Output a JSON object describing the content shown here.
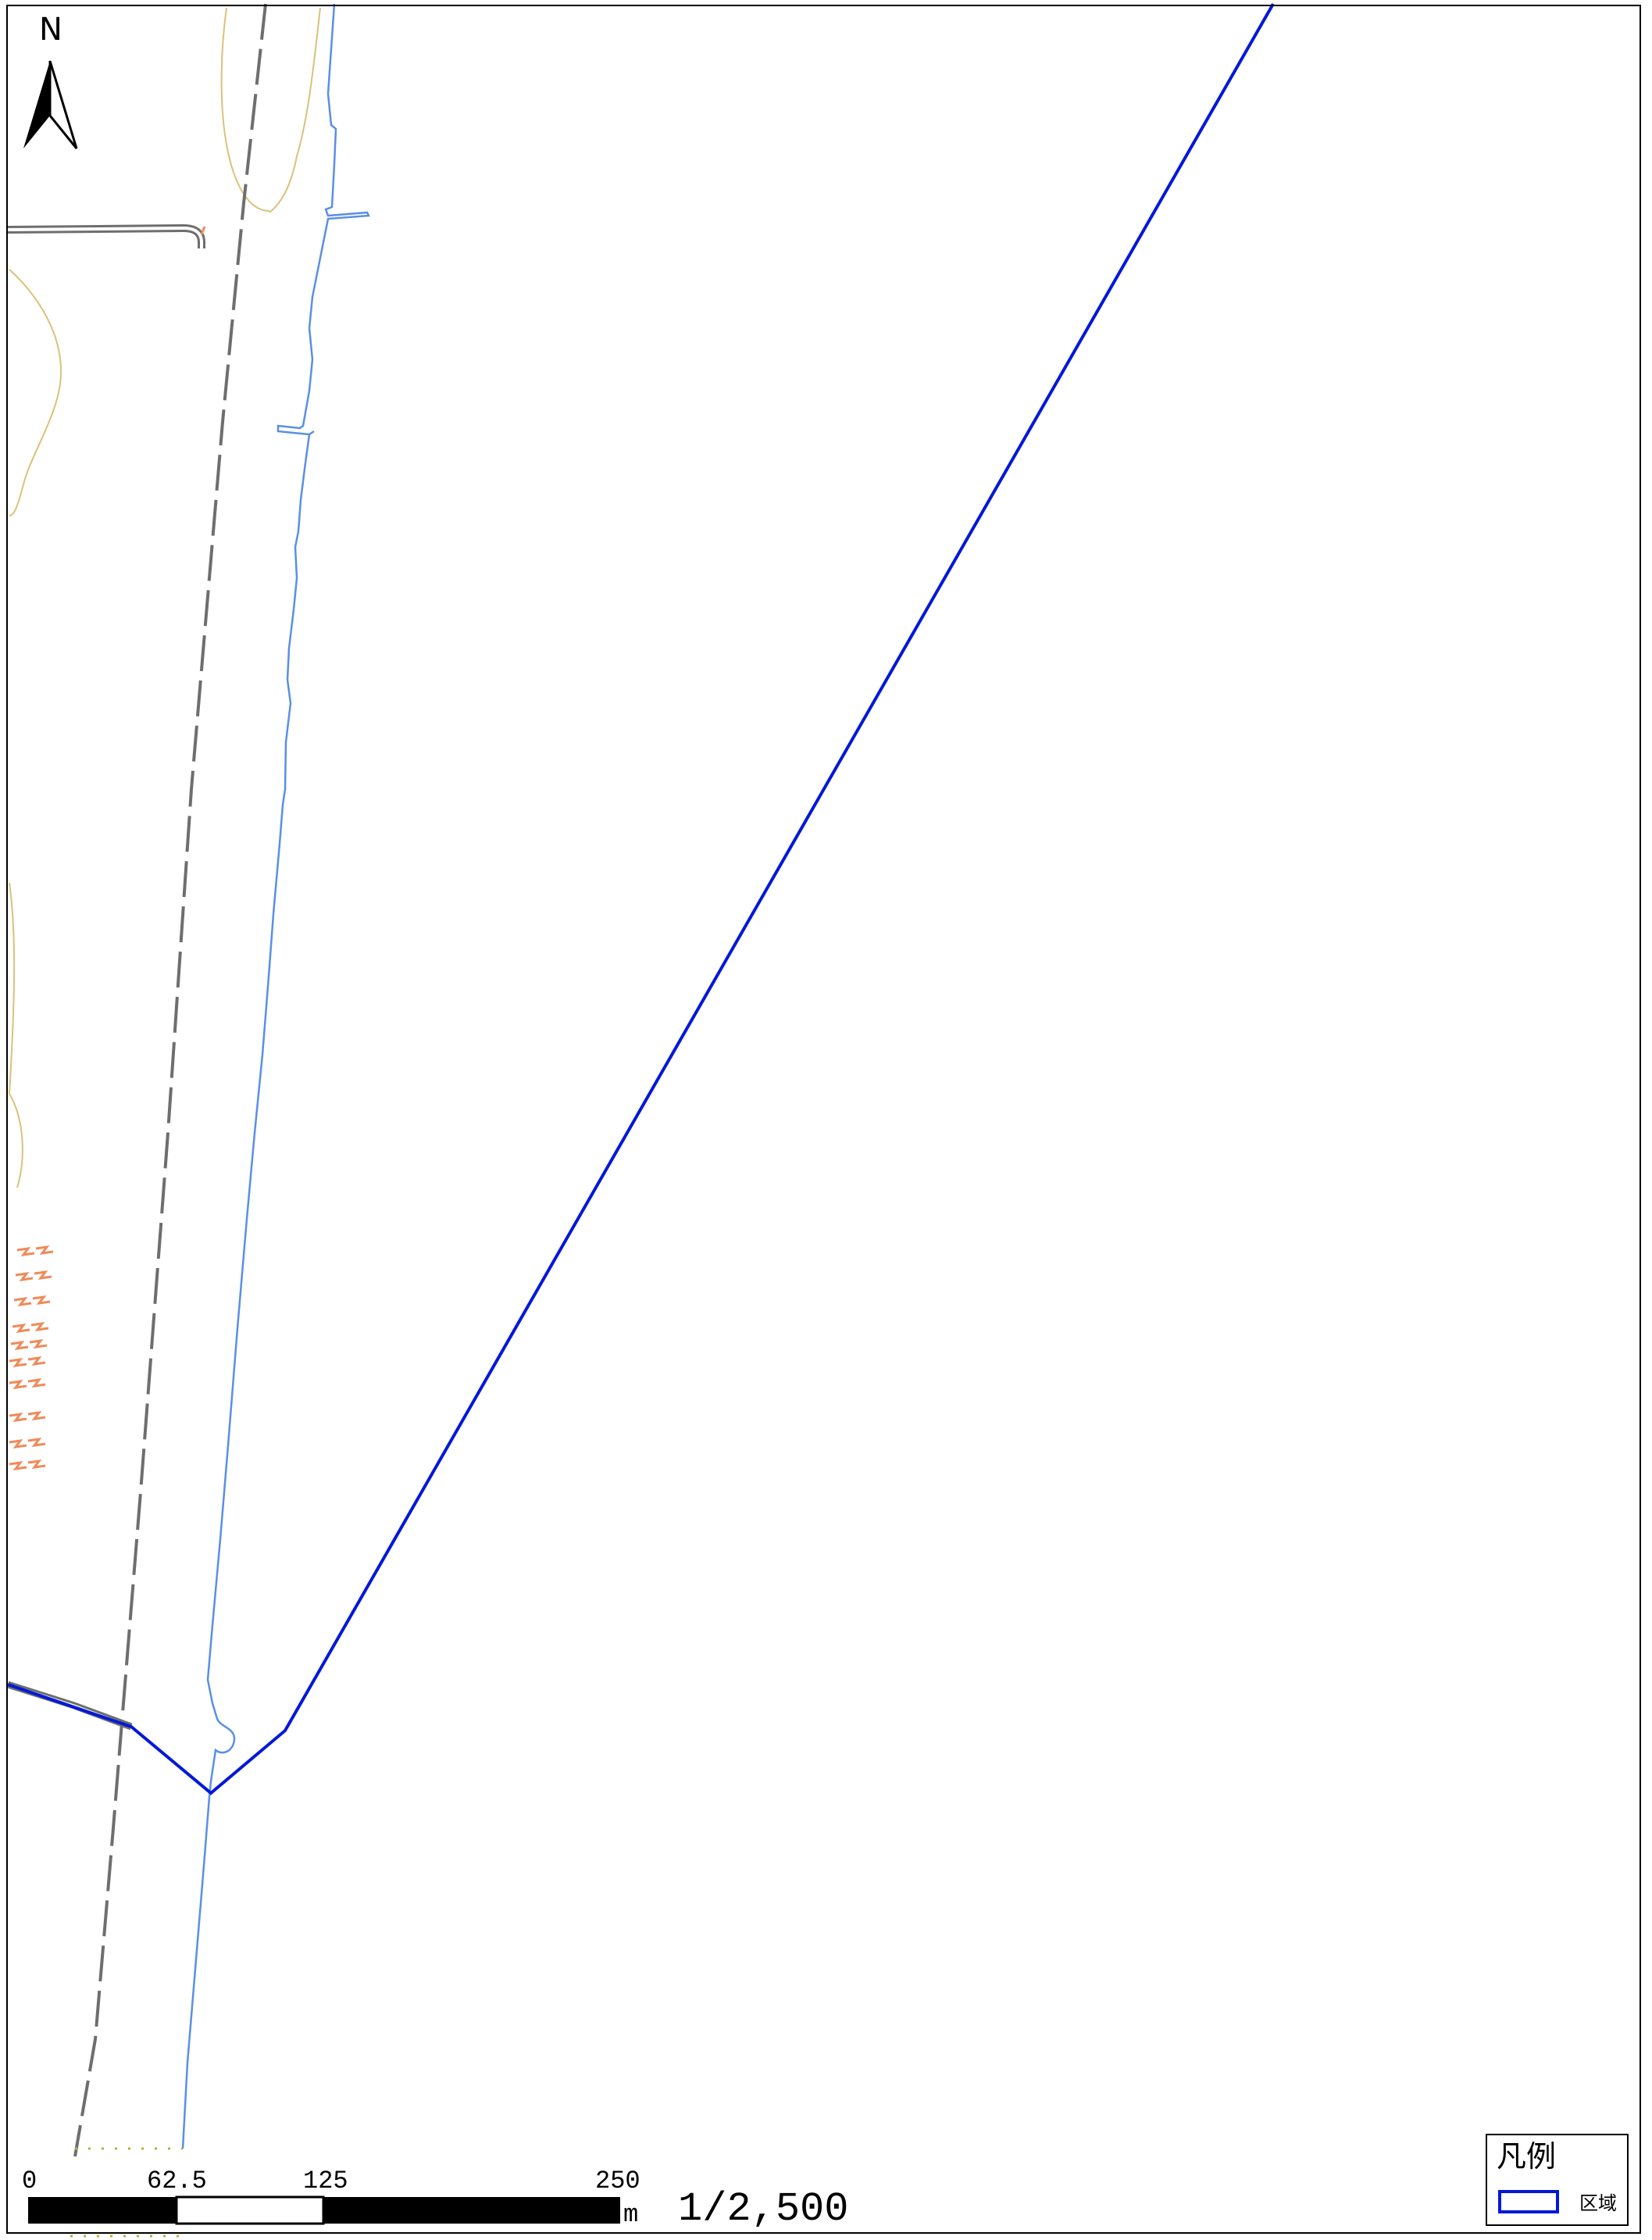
{
  "map": {
    "north_arrow_label": "N",
    "scale_bar": {
      "ticks": [
        "0",
        "62.5",
        "125",
        "250"
      ],
      "unit": "m"
    },
    "scale_ratio": "1/2,500",
    "legend": {
      "title": "凡例",
      "items": [
        {
          "label": "区域",
          "color": "#0018d8"
        }
      ]
    },
    "colors": {
      "boundary": "#0018d8",
      "water": "#5a8fe6",
      "road": "#6e6e6e",
      "contour": "#d9c27a",
      "building": "#f08a5a"
    }
  }
}
